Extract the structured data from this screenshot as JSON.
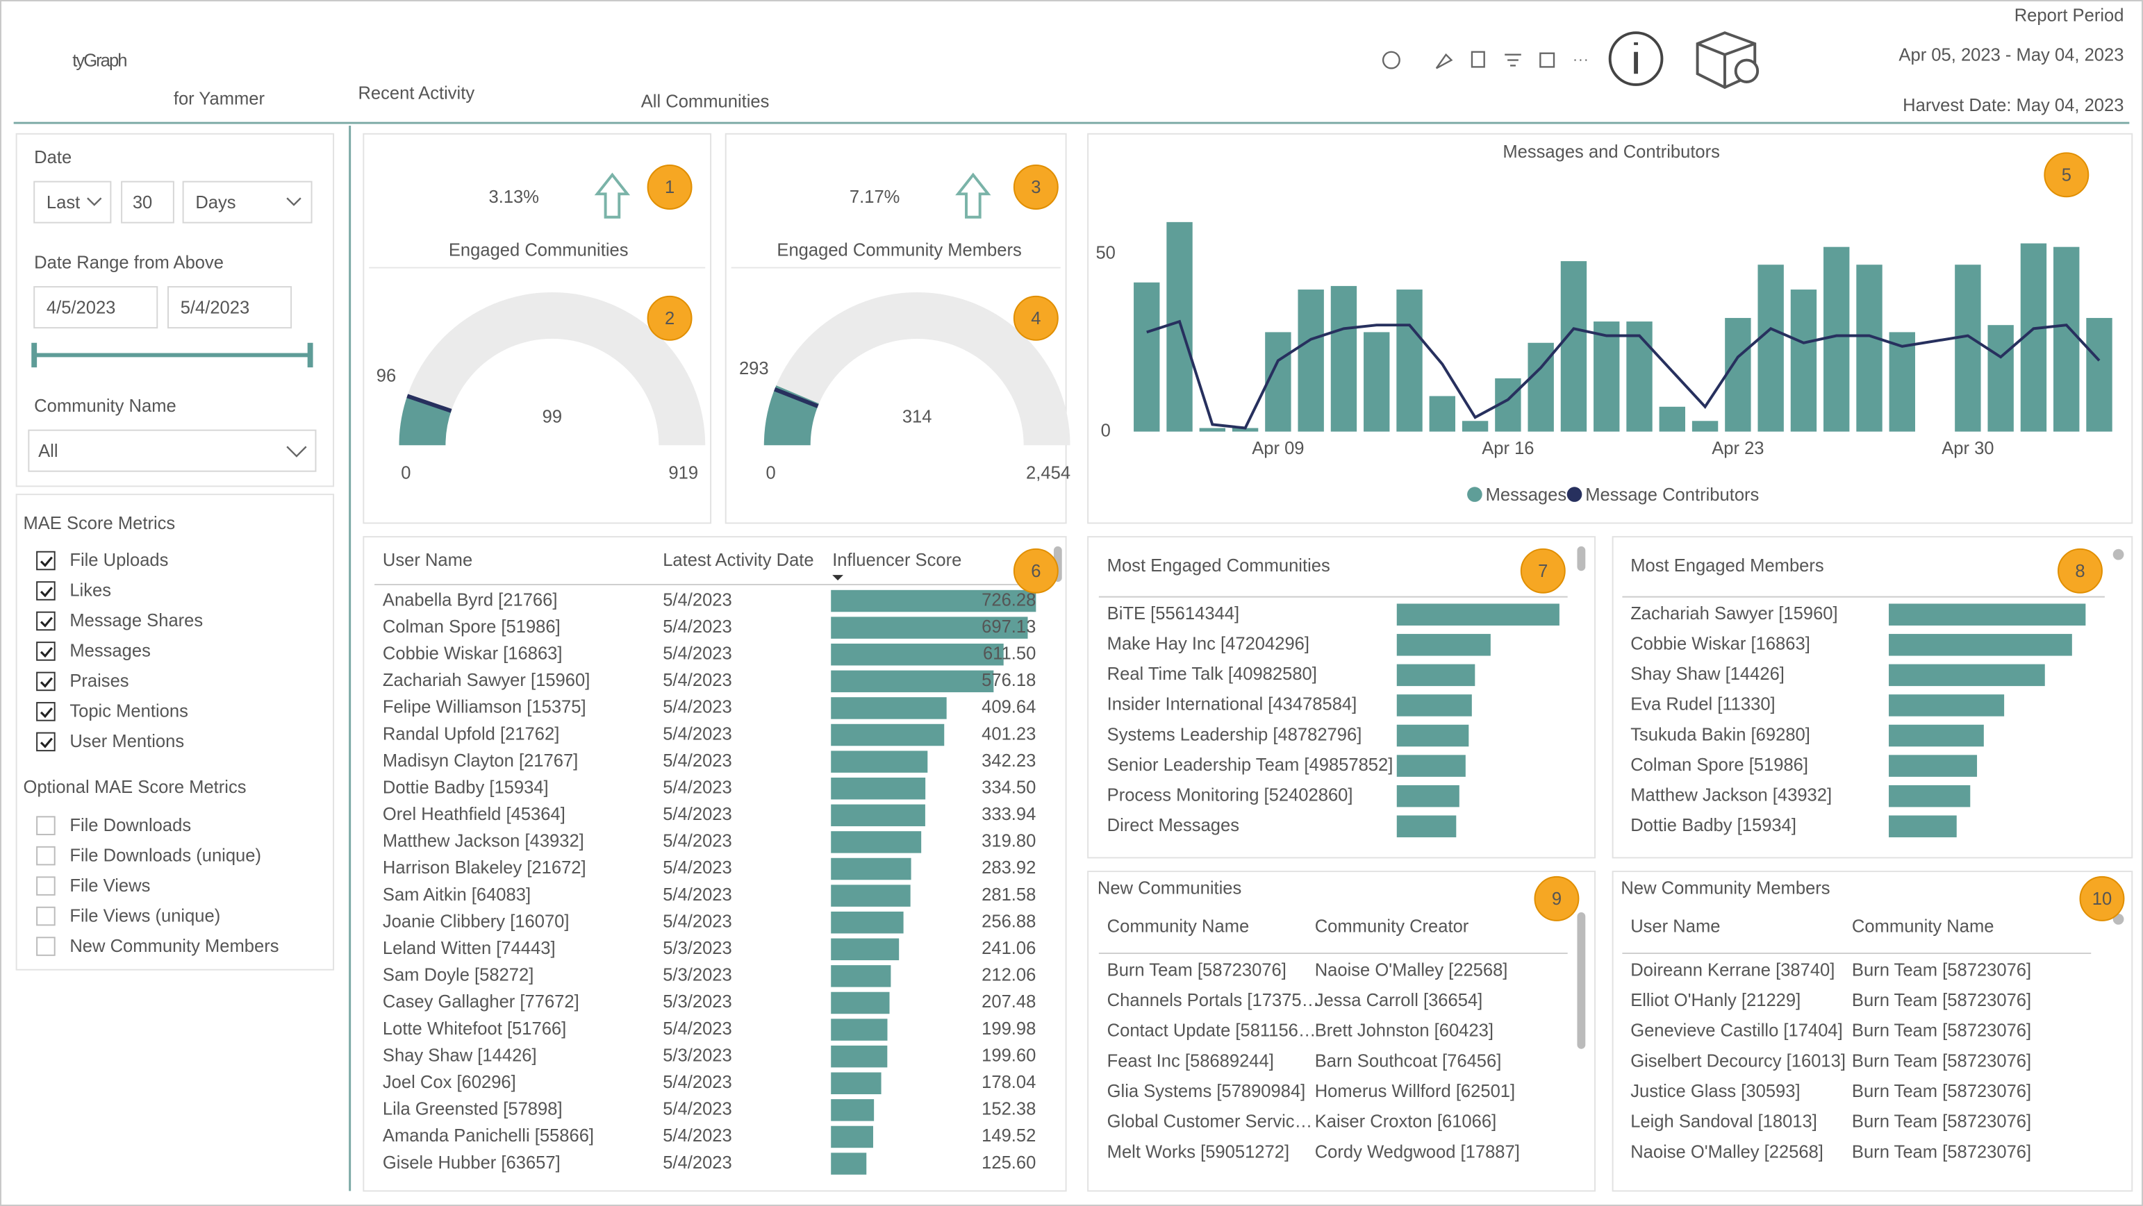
{
  "header": {
    "logo": "tyGraph",
    "logo_sub": "for Yammer",
    "title": "Recent Activity",
    "scope": "All Communities",
    "report_period_label": "Report Period",
    "report_period": "Apr 05, 2023 - May 04, 2023",
    "harvest_date": "Harvest Date: May 04, 2023"
  },
  "filters": {
    "date_label": "Date",
    "date_mode": "Last",
    "date_count": 30,
    "date_unit": "Days",
    "range_label": "Date Range from Above",
    "range_start": "4/5/2023",
    "range_end": "5/4/2023",
    "community_label": "Community Name",
    "community_value": "All",
    "mae_title": "MAE Score Metrics",
    "mae_metrics": [
      "File Uploads",
      "Likes",
      "Message Shares",
      "Messages",
      "Praises",
      "Topic Mentions",
      "User Mentions"
    ],
    "optional_title": "Optional MAE Score Metrics",
    "optional_metrics": [
      "File Downloads",
      "File Downloads (unique)",
      "File Views",
      "File Views (unique)",
      "New Community Members"
    ]
  },
  "kpis": [
    {
      "badge": 1,
      "value": 3.13,
      "value_label": "3.13%",
      "label": "Engaged Communities"
    },
    {
      "badge": 3,
      "value": 7.17,
      "value_label": "7.17%",
      "label": "Engaged Community Members"
    }
  ],
  "gauges": [
    {
      "type": "gauge",
      "badge": 2,
      "value": 99,
      "min": 0,
      "max": 919,
      "target": 96,
      "color": "#5e9c97"
    },
    {
      "type": "gauge",
      "badge": 4,
      "value": 314,
      "min": 0,
      "max": {
        "value": 2454,
        "label": "2,454"
      },
      "target": 293,
      "color": "#5e9c97"
    }
  ],
  "chart_data": {
    "type": "bar",
    "title": "Messages and Contributors",
    "badge": 5,
    "x": [
      "Apr 05",
      "Apr 06",
      "Apr 07",
      "Apr 08",
      "Apr 09",
      "Apr 10",
      "Apr 11",
      "Apr 12",
      "Apr 13",
      "Apr 14",
      "Apr 15",
      "Apr 16",
      "Apr 17",
      "Apr 18",
      "Apr 19",
      "Apr 20",
      "Apr 21",
      "Apr 22",
      "Apr 23",
      "Apr 24",
      "Apr 25",
      "Apr 26",
      "Apr 27",
      "Apr 28",
      "Apr 30",
      "May 01",
      "May 02",
      "May 03",
      "May 04"
    ],
    "series": [
      {
        "name": "Messages",
        "type": "bar",
        "color": "#5f9e98",
        "values": [
          42,
          59,
          1,
          1,
          28,
          40,
          41,
          28,
          40,
          10,
          3,
          15,
          25,
          48,
          31,
          31,
          7,
          3,
          32,
          47,
          40,
          52,
          47,
          28,
          47,
          30,
          53,
          52,
          32
        ]
      },
      {
        "name": "Message Contributors",
        "type": "line",
        "color": "#27305e",
        "values": [
          28,
          31,
          2,
          1,
          20,
          26,
          29,
          30,
          30,
          19,
          4,
          9,
          18,
          29,
          27,
          27,
          17,
          7,
          21,
          29,
          25,
          27,
          27,
          24,
          27,
          21,
          29,
          30,
          20
        ]
      }
    ],
    "ylim": [
      0,
      60
    ],
    "yticks": [
      0,
      50
    ],
    "xticks": [
      "Apr 09",
      "Apr 16",
      "Apr 23",
      "Apr 30"
    ],
    "grid": false,
    "legend": "bottom"
  },
  "influencers": {
    "badge": 6,
    "color": "#5f9e98",
    "columns": [
      "User Name",
      "Latest Activity Date",
      "Influencer Score"
    ],
    "rows": [
      {
        "user": "Anabella Byrd [21766]",
        "date": "5/4/2023",
        "score": 726.28
      },
      {
        "user": "Colman Spore [51986]",
        "date": "5/4/2023",
        "score": 697.13
      },
      {
        "user": "Cobbie Wiskar [16863]",
        "date": "5/4/2023",
        "score": 611.5,
        "score_label": "611.50"
      },
      {
        "user": "Zachariah Sawyer [15960]",
        "date": "5/4/2023",
        "score": 576.18
      },
      {
        "user": "Felipe Williamson [15375]",
        "date": "5/4/2023",
        "score": 409.64
      },
      {
        "user": "Randal Upfold [21762]",
        "date": "5/4/2023",
        "score": 401.23
      },
      {
        "user": "Madisyn Clayton [21767]",
        "date": "5/4/2023",
        "score": 342.23
      },
      {
        "user": "Dottie Badby [15934]",
        "date": "5/4/2023",
        "score": 334.5,
        "score_label": "334.50"
      },
      {
        "user": "Orel Heathfield [45364]",
        "date": "5/4/2023",
        "score": 333.94
      },
      {
        "user": "Matthew Jackson [43932]",
        "date": "5/4/2023",
        "score": 319.8,
        "score_label": "319.80"
      },
      {
        "user": "Harrison Blakeley [21672]",
        "date": "5/4/2023",
        "score": 283.92
      },
      {
        "user": "Sam Aitkin [64083]",
        "date": "5/4/2023",
        "score": 281.58
      },
      {
        "user": "Joanie Clibbery [16070]",
        "date": "5/4/2023",
        "score": 256.88
      },
      {
        "user": "Leland Witten [74443]",
        "date": "5/3/2023",
        "score": 241.06
      },
      {
        "user": "Sam Doyle [58272]",
        "date": "5/3/2023",
        "score": 212.06
      },
      {
        "user": "Casey Gallagher [77672]",
        "date": "5/3/2023",
        "score": 207.48
      },
      {
        "user": "Lotte Whitefoot [51766]",
        "date": "5/4/2023",
        "score": 199.98
      },
      {
        "user": "Shay Shaw [14426]",
        "date": "5/3/2023",
        "score": 199.6,
        "score_label": "199.60"
      },
      {
        "user": "Joel Cox [60296]",
        "date": "5/4/2023",
        "score": 178.04
      },
      {
        "user": "Lila Greensted [57898]",
        "date": "5/4/2023",
        "score": 152.38
      },
      {
        "user": "Amanda Panichelli [55866]",
        "date": "5/4/2023",
        "score": 149.52
      },
      {
        "user": "Gisele Hubber [63657]",
        "date": "5/4/2023",
        "score": 125.6,
        "score_label": "125.60"
      }
    ]
  },
  "engaged_communities": {
    "badge": 7,
    "title": "Most Engaged Communities",
    "color": "#5f9e98",
    "rows": [
      {
        "name": "BiTE [55614344]",
        "value": 52
      },
      {
        "name": "Make Hay Inc [47204296]",
        "value": 30
      },
      {
        "name": "Real Time Talk [40982580]",
        "value": 25
      },
      {
        "name": "Insider International [43478584]",
        "value": 24
      },
      {
        "name": "Systems Leadership [48782796]",
        "value": 23
      },
      {
        "name": "Senior Leadership Team [49857852]",
        "value": 22
      },
      {
        "name": "Process Monitoring [52402860]",
        "value": 20
      },
      {
        "name": "Direct Messages",
        "value": 19
      }
    ]
  },
  "engaged_members": {
    "badge": 8,
    "title": "Most Engaged Members",
    "color": "#5f9e98",
    "rows": [
      {
        "name": "Zachariah Sawyer [15960]",
        "value": 29
      },
      {
        "name": "Cobbie Wiskar [16863]",
        "value": 27
      },
      {
        "name": "Shay Shaw [14426]",
        "value": 23
      },
      {
        "name": "Eva Rudel [11330]",
        "value": 17
      },
      {
        "name": "Tsukuda Bakin [69280]",
        "value": 14
      },
      {
        "name": "Colman Spore [51986]",
        "value": 13
      },
      {
        "name": "Matthew Jackson [43932]",
        "value": 12
      },
      {
        "name": "Dottie Badby [15934]",
        "value": 10
      }
    ]
  },
  "new_communities": {
    "badge": 9,
    "title": "New Communities",
    "columns": [
      "Community Name",
      "Community Creator"
    ],
    "rows": [
      [
        "Burn Team [58723076]",
        "Naoise O'Malley [22568]"
      ],
      [
        "Channels Portals [17375…",
        "Jessa Carroll [36654]"
      ],
      [
        "Contact Update [581156…",
        "Brett Johnston [60423]"
      ],
      [
        "Feast Inc [58689244]",
        "Barn Southcoat [76456]"
      ],
      [
        "Glia Systems [57890984]",
        "Homerus Willford [62501]"
      ],
      [
        "Global Customer Servic…",
        "Kaiser Croxton [61066]"
      ],
      [
        "Melt Works [59051272]",
        "Cordy Wedgwood [17887]"
      ]
    ]
  },
  "new_members": {
    "badge": 10,
    "title": "New Community Members",
    "columns": [
      "User Name",
      "Community Name"
    ],
    "rows": [
      [
        "Doireann Kerrane [38740]",
        "Burn Team [58723076]"
      ],
      [
        "Elliot O'Hanly [21229]",
        "Burn Team [58723076]"
      ],
      [
        "Genevieve Castillo [17404]",
        "Burn Team [58723076]"
      ],
      [
        "Giselbert Decourcy [16013]",
        "Burn Team [58723076]"
      ],
      [
        "Justice Glass [30593]",
        "Burn Team [58723076]"
      ],
      [
        "Leigh Sandoval [18013]",
        "Burn Team [58723076]"
      ],
      [
        "Naoise O'Malley [22568]",
        "Burn Team [58723076]"
      ]
    ]
  }
}
